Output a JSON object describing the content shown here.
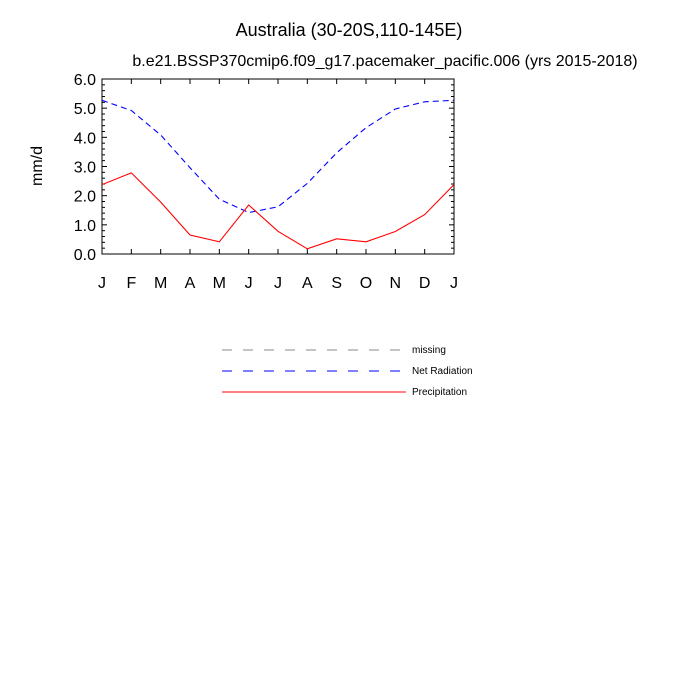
{
  "chart_data": {
    "type": "line",
    "title": "Australia (30-20S,110-145E)",
    "subtitle": "b.e21.BSSP370cmip6.f09_g17.pacemaker_pacific.006 (yrs 2015-2018)",
    "xlabel": "",
    "ylabel": "mm/d",
    "categories": [
      "J",
      "F",
      "M",
      "A",
      "M",
      "J",
      "J",
      "A",
      "S",
      "O",
      "N",
      "D",
      "J"
    ],
    "ylim": [
      0,
      6
    ],
    "yticks": [
      "0.0",
      "1.0",
      "2.0",
      "3.0",
      "4.0",
      "5.0",
      "6.0"
    ],
    "grid": false,
    "legend_position": "bottom-center",
    "series": [
      {
        "name": "Net Radiation",
        "color": "#0000ff",
        "style": "dashed",
        "values": [
          5.27,
          4.92,
          4.08,
          2.96,
          1.88,
          1.42,
          1.62,
          2.42,
          3.47,
          4.33,
          4.97,
          5.22,
          5.27
        ]
      },
      {
        "name": "Precipitation",
        "color": "#ff0000",
        "style": "solid",
        "values": [
          2.38,
          2.78,
          1.78,
          0.65,
          0.42,
          1.68,
          0.78,
          0.18,
          0.52,
          0.42,
          0.77,
          1.35,
          2.38
        ]
      }
    ],
    "legend": [
      {
        "label": "missing",
        "color": "#888888",
        "style": "dashed"
      },
      {
        "label": "Net Radiation",
        "color": "#0000ff",
        "style": "dashed"
      },
      {
        "label": "Precipitation",
        "color": "#ff0000",
        "style": "solid"
      }
    ]
  }
}
